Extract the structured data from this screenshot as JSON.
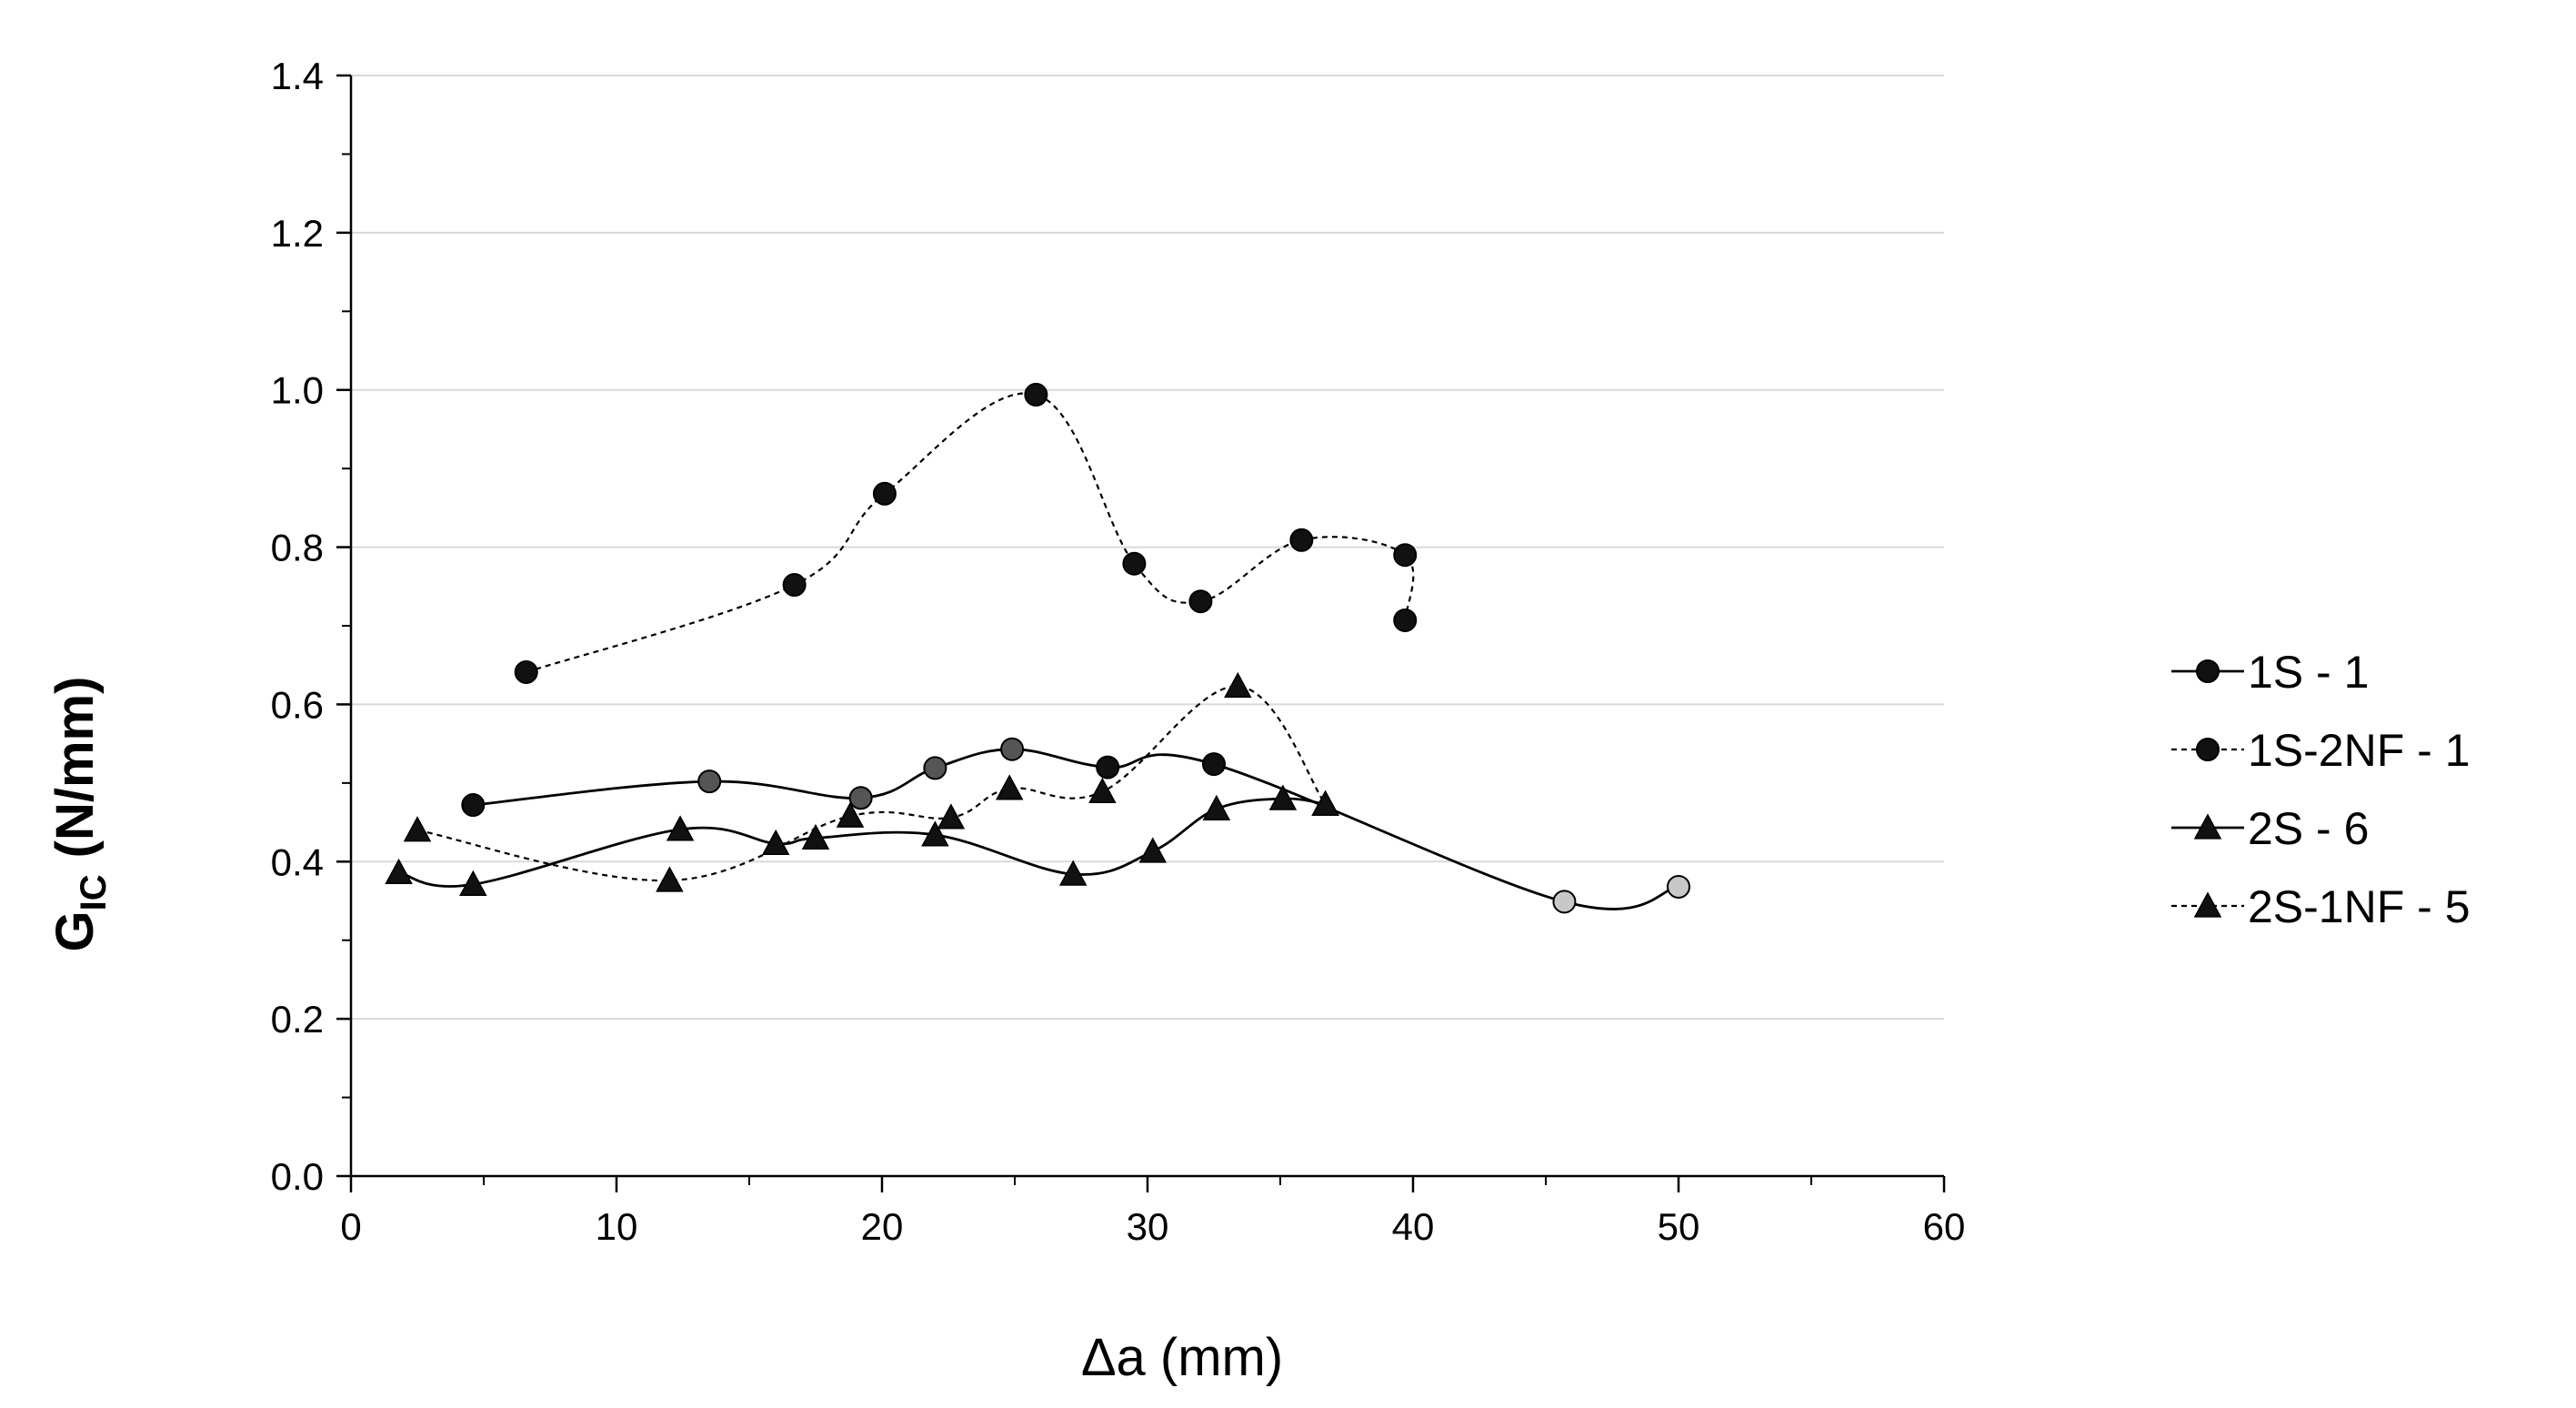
{
  "chart_data": {
    "type": "line",
    "title": "",
    "xlabel": "Δa (mm)",
    "ylabel": {
      "main": "G",
      "subscript": "IC",
      "units": "(N/mm)"
    },
    "xlim": [
      0,
      60
    ],
    "ylim": [
      0,
      1.4
    ],
    "xticks": [
      0,
      10,
      20,
      30,
      40,
      50,
      60
    ],
    "yticks": [
      0.0,
      0.2,
      0.4,
      0.6,
      0.8,
      1.0,
      1.2,
      1.4
    ],
    "xtick_labels": [
      "0",
      "10",
      "20",
      "30",
      "40",
      "50",
      "60"
    ],
    "ytick_labels": [
      "0.0",
      "0.2",
      "0.4",
      "0.6",
      "0.8",
      "1.0",
      "1.2",
      "1.4"
    ],
    "grid": "horizontal",
    "legend_position": "right",
    "series": [
      {
        "name": "1S - 1",
        "marker": "circle",
        "line": "solid",
        "x": [
          4.6,
          13.5,
          19.2,
          22.0,
          24.9,
          28.5,
          32.5,
          45.7,
          50.0
        ],
        "y": [
          0.472,
          0.502,
          0.481,
          0.519,
          0.543,
          0.52,
          0.524,
          0.349,
          0.368
        ],
        "marker_fill": [
          "#111111",
          "#555555",
          "#555555",
          "#555555",
          "#555555",
          "#111111",
          "#111111",
          "#c8c8c8",
          "#c8c8c8"
        ]
      },
      {
        "name": "1S-2NF - 1",
        "marker": "circle",
        "line": "dashed",
        "x": [
          6.6,
          16.7,
          20.1,
          25.8,
          29.5,
          32.0,
          35.8,
          39.7,
          39.7
        ],
        "y": [
          0.641,
          0.752,
          0.868,
          0.994,
          0.779,
          0.731,
          0.809,
          0.79,
          0.707
        ],
        "marker_fill": [
          "#111111",
          "#111111",
          "#111111",
          "#111111",
          "#111111",
          "#111111",
          "#111111",
          "#111111",
          "#111111"
        ]
      },
      {
        "name": "2S - 6",
        "marker": "triangle",
        "line": "solid",
        "x": [
          1.8,
          4.6,
          12.4,
          16.0,
          17.5,
          22.0,
          27.2,
          30.2,
          32.6,
          35.1,
          36.7
        ],
        "y": [
          0.386,
          0.371,
          0.441,
          0.423,
          0.43,
          0.434,
          0.384,
          0.413,
          0.467,
          0.48,
          0.473
        ],
        "marker_fill": [
          "#111111",
          "#111111",
          "#111111",
          "#111111",
          "#111111",
          "#111111",
          "#111111",
          "#111111",
          "#111111",
          "#111111",
          "#111111"
        ]
      },
      {
        "name": "2S-1NF - 5",
        "marker": "triangle",
        "line": "dashed",
        "x": [
          2.5,
          12.0,
          18.8,
          22.6,
          24.8,
          28.3,
          33.4,
          36.7
        ],
        "y": [
          0.44,
          0.376,
          0.458,
          0.456,
          0.493,
          0.489,
          0.623,
          0.473
        ],
        "marker_fill": [
          "#111111",
          "#111111",
          "#111111",
          "#111111",
          "#111111",
          "#111111",
          "#111111",
          "#111111"
        ]
      }
    ]
  }
}
